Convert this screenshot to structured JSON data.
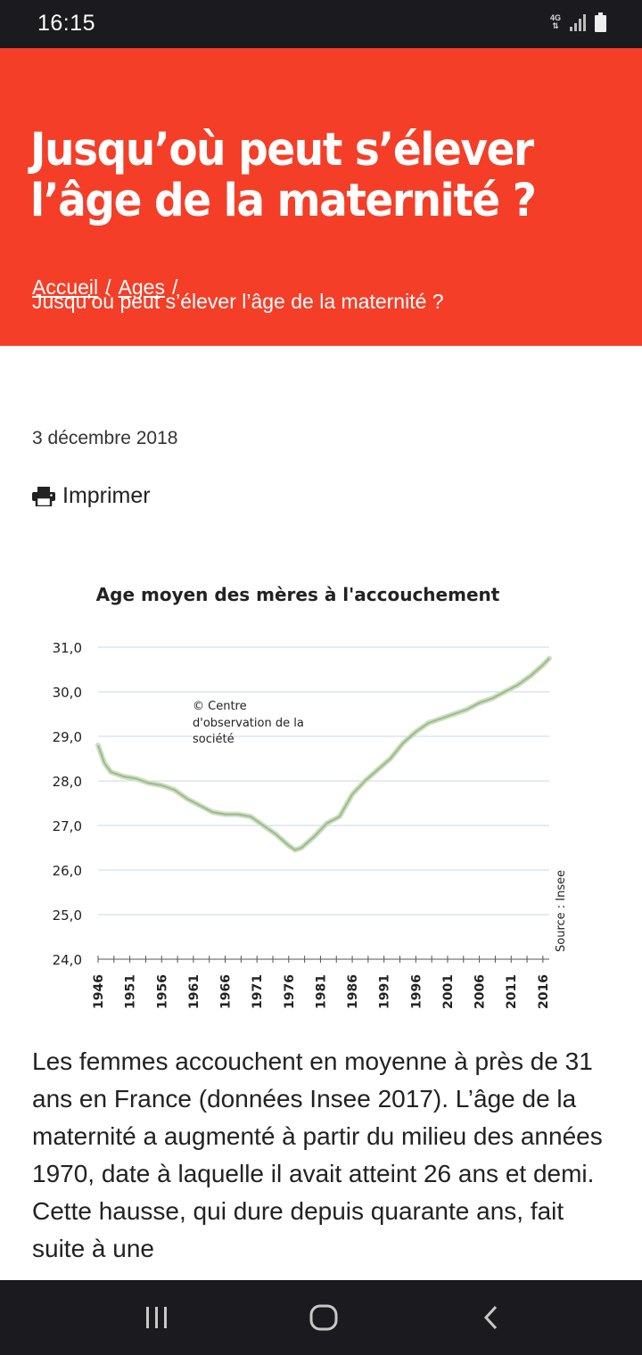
{
  "status_bar": {
    "time": "16:15",
    "network": "4G",
    "icons": [
      "signal-icon",
      "battery-icon"
    ]
  },
  "header": {
    "title": "Jusqu’où peut s’élever l’âge de la maternité ?",
    "background_color": "#f53e27",
    "breadcrumb": [
      {
        "label": "Accueil"
      },
      {
        "label": "Ages"
      },
      {
        "label": "Jusqu’où peut s’élever l’âge de la maternité ?"
      }
    ],
    "breadcrumb_separator": "/"
  },
  "article": {
    "date": "3 décembre 2018",
    "print_label": "Imprimer",
    "body_text": "Les femmes accouchent en moyenne à près de 31 ans en France (données Insee 2017). L’âge de la maternité a augmenté à partir du milieu des années 1970, date à laquelle il avait atteint 26 ans et demi. Cette hausse, qui dure depuis quarante ans, fait suite à une"
  },
  "chart_data": {
    "type": "line",
    "title": "Age moyen des mères à l'accouchement",
    "annotation": "© Centre d'observation de la société",
    "source": "Source : Insee",
    "xlabel": "",
    "ylabel": "",
    "ylim": [
      24,
      31
    ],
    "xlim": [
      1946,
      2017
    ],
    "y_ticks": [
      "24,0",
      "25,0",
      "26,0",
      "27,0",
      "28,0",
      "29,0",
      "30,0",
      "31,0"
    ],
    "x_ticks": [
      "1946",
      "1951",
      "1956",
      "1961",
      "1966",
      "1971",
      "1976",
      "1981",
      "1986",
      "1991",
      "1996",
      "2001",
      "2006",
      "2011",
      "2016"
    ],
    "grid": true,
    "series": [
      {
        "color": "#cfe0c4",
        "x": [
          1946,
          1947,
          1948,
          1950,
          1952,
          1954,
          1956,
          1958,
          1960,
          1962,
          1964,
          1966,
          1968,
          1970,
          1972,
          1974,
          1976,
          1977,
          1978,
          1980,
          1982,
          1984,
          1986,
          1988,
          1990,
          1992,
          1994,
          1996,
          1998,
          2000,
          2002,
          2004,
          2006,
          2008,
          2010,
          2012,
          2014,
          2016,
          2017
        ],
        "values": [
          28.8,
          28.4,
          28.2,
          28.1,
          28.05,
          27.95,
          27.9,
          27.8,
          27.6,
          27.45,
          27.3,
          27.25,
          27.25,
          27.2,
          27.0,
          26.8,
          26.55,
          26.45,
          26.5,
          26.75,
          27.05,
          27.2,
          27.7,
          28.0,
          28.25,
          28.5,
          28.85,
          29.1,
          29.3,
          29.4,
          29.5,
          29.6,
          29.75,
          29.85,
          30.0,
          30.15,
          30.35,
          30.6,
          30.75
        ]
      }
    ]
  }
}
